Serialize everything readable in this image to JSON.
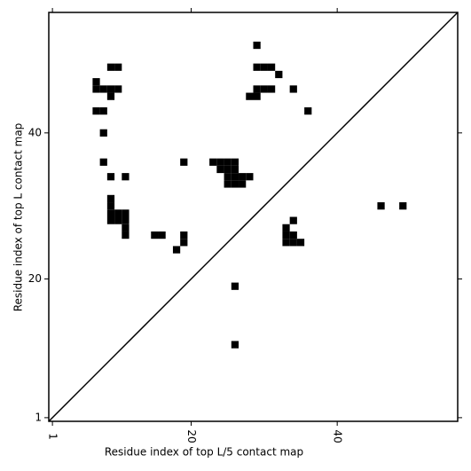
{
  "chart_data": {
    "type": "scatter",
    "marker": "square",
    "color": "#000000",
    "xlabel": "Residue index of top L/5 contact map",
    "ylabel": "Residue index of top L contact map",
    "xlim": [
      0.5,
      56.5
    ],
    "ylim": [
      0.5,
      56.5
    ],
    "xticks": [
      1,
      20,
      40
    ],
    "yticks": [
      1,
      20,
      40
    ],
    "diagonal": true,
    "x": [
      29,
      9,
      10,
      29,
      30,
      31,
      32,
      7,
      7,
      8,
      9,
      10,
      29,
      30,
      31,
      34,
      9,
      28,
      29,
      7,
      8,
      36,
      8,
      8,
      19,
      23,
      24,
      25,
      26,
      24,
      25,
      26,
      9,
      11,
      25,
      26,
      27,
      28,
      25,
      26,
      27,
      9,
      9,
      46,
      49,
      9,
      10,
      11,
      9,
      10,
      11,
      34,
      11,
      33,
      11,
      15,
      16,
      19,
      33,
      34,
      19,
      33,
      34,
      35,
      18,
      26,
      26
    ],
    "y": [
      52,
      49,
      49,
      49,
      49,
      49,
      48,
      47,
      46,
      46,
      46,
      46,
      46,
      46,
      46,
      46,
      45,
      45,
      45,
      43,
      43,
      43,
      40,
      36,
      36,
      36,
      36,
      36,
      36,
      35,
      35,
      35,
      34,
      34,
      34,
      34,
      34,
      34,
      33,
      33,
      33,
      31,
      30,
      30,
      30,
      29,
      29,
      29,
      28,
      28,
      28,
      28,
      27,
      27,
      26,
      26,
      26,
      26,
      26,
      26,
      25,
      25,
      25,
      25,
      24,
      19,
      11
    ]
  }
}
